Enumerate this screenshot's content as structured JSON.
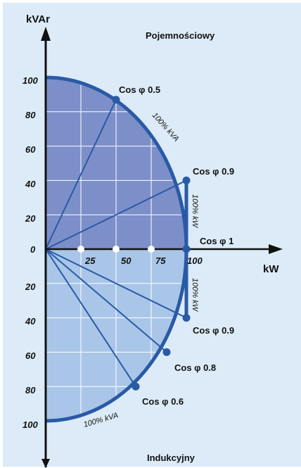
{
  "colors": {
    "background": "#dcebf7",
    "upper_fill": "#7d8fc9",
    "lower_fill": "#a9c6e8",
    "line": "#2a5aa6",
    "axis": "#111111",
    "grid": "#ffffff"
  },
  "labels": {
    "y_axis": "kVAr",
    "x_axis": "kW",
    "upper_region": "Pojemnościowy",
    "lower_region": "Indukcyjny",
    "arc_upper": "100% kVA",
    "arc_lower": "100% kVA",
    "kw_upper": "100% kW",
    "kw_lower": "100% kW"
  },
  "y_ticks_upper": [
    "100",
    "80",
    "60",
    "40",
    "20"
  ],
  "y_tick_zero": "0",
  "y_ticks_lower": [
    "20",
    "40",
    "60",
    "80",
    "100"
  ],
  "x_ticks": [
    "25",
    "50",
    "75",
    "100"
  ],
  "cos_labels": {
    "c05": "Cos φ 0.5",
    "c09_up": "Cos φ 0.9",
    "c1": "Cos φ 1",
    "c09_down": "Cos φ 0.9",
    "c08": "Cos φ 0.8",
    "c06": "Cos φ 0.6"
  },
  "chart_data": {
    "type": "diagram",
    "x_range": [
      0,
      100
    ],
    "y_range": [
      -100,
      100
    ],
    "points": [
      {
        "label": "Cos φ 0.5",
        "x": 50,
        "y": 87
      },
      {
        "label": "Cos φ 0.9",
        "x": 100,
        "y": 40
      },
      {
        "label": "Cos φ 1",
        "x": 100,
        "y": 0
      },
      {
        "label": "Cos φ 0.9",
        "x": 100,
        "y": -40
      },
      {
        "label": "Cos φ 0.8",
        "x": 86,
        "y": -60
      },
      {
        "label": "Cos φ 0.6",
        "x": 64,
        "y": -80
      }
    ]
  }
}
